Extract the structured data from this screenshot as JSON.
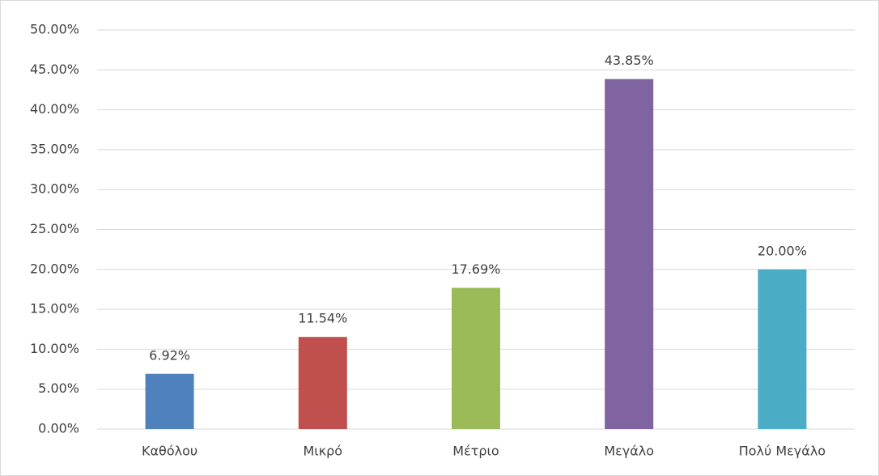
{
  "chart_data": {
    "type": "bar",
    "categories": [
      "Καθόλου",
      "Μικρό",
      "Μέτριο",
      "Μεγάλο",
      "Πολύ Μεγάλο"
    ],
    "values": [
      6.92,
      11.54,
      17.69,
      43.85,
      20.0
    ],
    "value_labels": [
      "6.92%",
      "11.54%",
      "17.69%",
      "43.85%",
      "20.00%"
    ],
    "colors": [
      "#4f81bd",
      "#c0504d",
      "#9bbb59",
      "#8064a2",
      "#4bacc6"
    ],
    "ylim": [
      0,
      50
    ],
    "yticks": [
      {
        "value": 0,
        "label": "0.00%"
      },
      {
        "value": 5,
        "label": "5.00%"
      },
      {
        "value": 10,
        "label": "10.00%"
      },
      {
        "value": 15,
        "label": "15.00%"
      },
      {
        "value": 20,
        "label": "20.00%"
      },
      {
        "value": 25,
        "label": "25.00%"
      },
      {
        "value": 30,
        "label": "30.00%"
      },
      {
        "value": 35,
        "label": "35.00%"
      },
      {
        "value": 40,
        "label": "40.00%"
      },
      {
        "value": 45,
        "label": "45.00%"
      },
      {
        "value": 50,
        "label": "50.00%"
      }
    ],
    "grid": true
  }
}
